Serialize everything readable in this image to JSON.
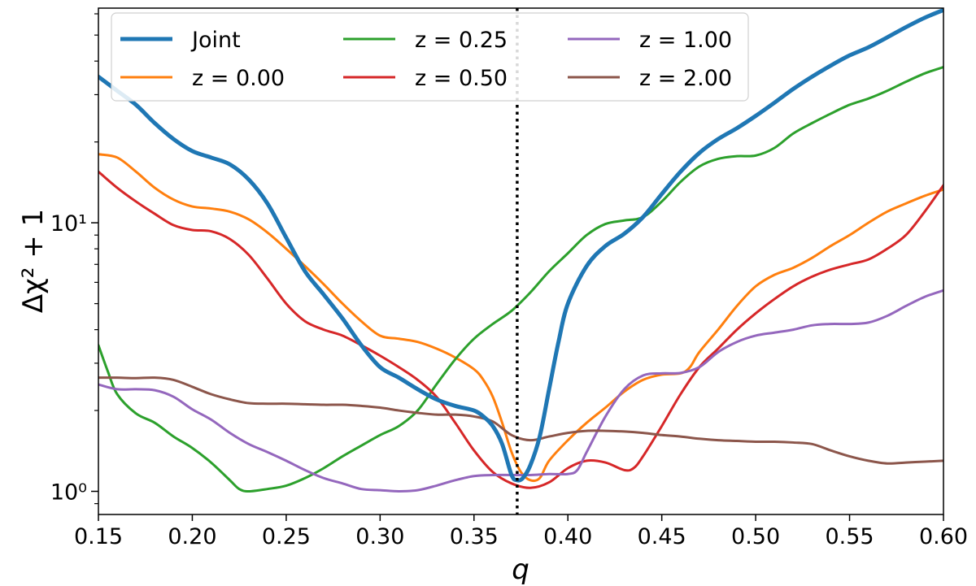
{
  "chart_data": {
    "type": "line",
    "title": "",
    "xlabel": "q",
    "ylabel": "Δχ² + 1",
    "xlim": [
      0.15,
      0.6
    ],
    "ylim": [
      0.82,
      63
    ],
    "yscale": "log",
    "xticks": [
      0.15,
      0.2,
      0.25,
      0.3,
      0.35,
      0.4,
      0.45,
      0.5,
      0.55,
      0.6
    ],
    "xtick_labels": [
      "0.15",
      "0.20",
      "0.25",
      "0.30",
      "0.35",
      "0.40",
      "0.45",
      "0.50",
      "0.55",
      "0.60"
    ],
    "yticks_major": [
      1,
      10
    ],
    "ytick_labels": [
      "10⁰",
      "10¹"
    ],
    "vline": {
      "x": 0.373,
      "style": "dotted",
      "color": "#000000"
    },
    "grid": false,
    "legend": {
      "location": "top-left",
      "columns": 3
    },
    "series": [
      {
        "name": "Joint",
        "color": "#1f77b4",
        "width": 5,
        "points": [
          [
            0.15,
            35
          ],
          [
            0.16,
            31
          ],
          [
            0.17,
            27.5
          ],
          [
            0.18,
            23.5
          ],
          [
            0.19,
            20.5
          ],
          [
            0.2,
            18.5
          ],
          [
            0.21,
            17.5
          ],
          [
            0.22,
            16.5
          ],
          [
            0.23,
            14.5
          ],
          [
            0.24,
            11.8
          ],
          [
            0.25,
            8.8
          ],
          [
            0.26,
            6.6
          ],
          [
            0.27,
            5.4
          ],
          [
            0.28,
            4.4
          ],
          [
            0.29,
            3.5
          ],
          [
            0.3,
            2.9
          ],
          [
            0.31,
            2.65
          ],
          [
            0.32,
            2.4
          ],
          [
            0.33,
            2.2
          ],
          [
            0.34,
            2.08
          ],
          [
            0.35,
            2.0
          ],
          [
            0.355,
            1.9
          ],
          [
            0.36,
            1.75
          ],
          [
            0.365,
            1.5
          ],
          [
            0.37,
            1.15
          ],
          [
            0.373,
            1.1
          ],
          [
            0.376,
            1.12
          ],
          [
            0.38,
            1.25
          ],
          [
            0.385,
            1.6
          ],
          [
            0.39,
            2.4
          ],
          [
            0.395,
            3.6
          ],
          [
            0.4,
            5.0
          ],
          [
            0.41,
            6.9
          ],
          [
            0.42,
            8.2
          ],
          [
            0.43,
            9.1
          ],
          [
            0.44,
            10.5
          ],
          [
            0.45,
            12.8
          ],
          [
            0.46,
            15.5
          ],
          [
            0.47,
            18.2
          ],
          [
            0.48,
            20.5
          ],
          [
            0.49,
            22.5
          ],
          [
            0.5,
            25
          ],
          [
            0.51,
            28
          ],
          [
            0.52,
            31.5
          ],
          [
            0.53,
            35
          ],
          [
            0.54,
            38.5
          ],
          [
            0.55,
            42
          ],
          [
            0.56,
            45
          ],
          [
            0.57,
            49
          ],
          [
            0.58,
            53.5
          ],
          [
            0.59,
            58
          ],
          [
            0.6,
            62
          ]
        ]
      },
      {
        "name": "z = 0.00",
        "color": "#ff7f0e",
        "width": 3,
        "points": [
          [
            0.15,
            18
          ],
          [
            0.16,
            17.5
          ],
          [
            0.17,
            15.5
          ],
          [
            0.18,
            13.5
          ],
          [
            0.19,
            12.2
          ],
          [
            0.2,
            11.5
          ],
          [
            0.21,
            11.3
          ],
          [
            0.22,
            11.0
          ],
          [
            0.23,
            10.3
          ],
          [
            0.24,
            9.2
          ],
          [
            0.25,
            8.0
          ],
          [
            0.26,
            6.9
          ],
          [
            0.27,
            5.9
          ],
          [
            0.28,
            5.0
          ],
          [
            0.29,
            4.3
          ],
          [
            0.3,
            3.8
          ],
          [
            0.31,
            3.7
          ],
          [
            0.32,
            3.6
          ],
          [
            0.33,
            3.4
          ],
          [
            0.34,
            3.15
          ],
          [
            0.35,
            2.85
          ],
          [
            0.355,
            2.6
          ],
          [
            0.36,
            2.25
          ],
          [
            0.365,
            1.8
          ],
          [
            0.37,
            1.4
          ],
          [
            0.375,
            1.18
          ],
          [
            0.38,
            1.1
          ],
          [
            0.385,
            1.12
          ],
          [
            0.39,
            1.3
          ],
          [
            0.4,
            1.55
          ],
          [
            0.41,
            1.8
          ],
          [
            0.42,
            2.05
          ],
          [
            0.43,
            2.35
          ],
          [
            0.44,
            2.6
          ],
          [
            0.45,
            2.72
          ],
          [
            0.46,
            2.75
          ],
          [
            0.465,
            2.9
          ],
          [
            0.47,
            3.3
          ],
          [
            0.48,
            4.0
          ],
          [
            0.49,
            4.9
          ],
          [
            0.5,
            5.8
          ],
          [
            0.51,
            6.4
          ],
          [
            0.52,
            6.8
          ],
          [
            0.53,
            7.4
          ],
          [
            0.54,
            8.2
          ],
          [
            0.55,
            9.0
          ],
          [
            0.56,
            10.0
          ],
          [
            0.57,
            11.0
          ],
          [
            0.58,
            11.8
          ],
          [
            0.59,
            12.6
          ],
          [
            0.6,
            13.3
          ]
        ]
      },
      {
        "name": "z = 0.25",
        "color": "#2ca02c",
        "width": 3,
        "points": [
          [
            0.15,
            3.5
          ],
          [
            0.155,
            2.8
          ],
          [
            0.16,
            2.3
          ],
          [
            0.17,
            1.95
          ],
          [
            0.18,
            1.8
          ],
          [
            0.19,
            1.6
          ],
          [
            0.2,
            1.45
          ],
          [
            0.21,
            1.28
          ],
          [
            0.22,
            1.1
          ],
          [
            0.225,
            1.02
          ],
          [
            0.23,
            1.0
          ],
          [
            0.24,
            1.02
          ],
          [
            0.25,
            1.05
          ],
          [
            0.26,
            1.12
          ],
          [
            0.27,
            1.22
          ],
          [
            0.28,
            1.35
          ],
          [
            0.29,
            1.48
          ],
          [
            0.3,
            1.62
          ],
          [
            0.31,
            1.75
          ],
          [
            0.32,
            2.0
          ],
          [
            0.33,
            2.5
          ],
          [
            0.34,
            3.1
          ],
          [
            0.35,
            3.7
          ],
          [
            0.36,
            4.2
          ],
          [
            0.37,
            4.7
          ],
          [
            0.38,
            5.5
          ],
          [
            0.39,
            6.6
          ],
          [
            0.4,
            7.7
          ],
          [
            0.41,
            9.0
          ],
          [
            0.42,
            9.9
          ],
          [
            0.43,
            10.2
          ],
          [
            0.44,
            10.5
          ],
          [
            0.45,
            12.0
          ],
          [
            0.46,
            14.2
          ],
          [
            0.47,
            16.2
          ],
          [
            0.48,
            17.3
          ],
          [
            0.49,
            17.7
          ],
          [
            0.5,
            17.8
          ],
          [
            0.51,
            19.0
          ],
          [
            0.52,
            21.5
          ],
          [
            0.53,
            23.5
          ],
          [
            0.54,
            25.5
          ],
          [
            0.55,
            27.5
          ],
          [
            0.56,
            29
          ],
          [
            0.57,
            31
          ],
          [
            0.58,
            33.5
          ],
          [
            0.59,
            36
          ],
          [
            0.6,
            38
          ]
        ]
      },
      {
        "name": "z = 0.50",
        "color": "#d62728",
        "width": 3,
        "points": [
          [
            0.15,
            15.5
          ],
          [
            0.16,
            13.5
          ],
          [
            0.17,
            12.0
          ],
          [
            0.18,
            10.8
          ],
          [
            0.19,
            9.8
          ],
          [
            0.2,
            9.4
          ],
          [
            0.21,
            9.3
          ],
          [
            0.22,
            8.7
          ],
          [
            0.23,
            7.6
          ],
          [
            0.24,
            6.2
          ],
          [
            0.25,
            5.0
          ],
          [
            0.26,
            4.3
          ],
          [
            0.27,
            4.0
          ],
          [
            0.28,
            3.8
          ],
          [
            0.29,
            3.5
          ],
          [
            0.3,
            3.2
          ],
          [
            0.31,
            2.9
          ],
          [
            0.32,
            2.6
          ],
          [
            0.33,
            2.25
          ],
          [
            0.34,
            1.8
          ],
          [
            0.35,
            1.42
          ],
          [
            0.36,
            1.18
          ],
          [
            0.37,
            1.07
          ],
          [
            0.38,
            1.03
          ],
          [
            0.39,
            1.08
          ],
          [
            0.4,
            1.22
          ],
          [
            0.41,
            1.3
          ],
          [
            0.42,
            1.28
          ],
          [
            0.43,
            1.2
          ],
          [
            0.435,
            1.22
          ],
          [
            0.44,
            1.35
          ],
          [
            0.45,
            1.75
          ],
          [
            0.46,
            2.3
          ],
          [
            0.47,
            2.9
          ],
          [
            0.48,
            3.4
          ],
          [
            0.49,
            4.0
          ],
          [
            0.5,
            4.6
          ],
          [
            0.51,
            5.2
          ],
          [
            0.52,
            5.8
          ],
          [
            0.53,
            6.3
          ],
          [
            0.54,
            6.7
          ],
          [
            0.55,
            7.0
          ],
          [
            0.56,
            7.3
          ],
          [
            0.57,
            8.0
          ],
          [
            0.58,
            9.0
          ],
          [
            0.59,
            11.0
          ],
          [
            0.6,
            13.8
          ]
        ]
      },
      {
        "name": "z = 1.00",
        "color": "#9467bd",
        "width": 3,
        "points": [
          [
            0.15,
            2.5
          ],
          [
            0.16,
            2.4
          ],
          [
            0.17,
            2.4
          ],
          [
            0.18,
            2.38
          ],
          [
            0.19,
            2.25
          ],
          [
            0.2,
            2.02
          ],
          [
            0.21,
            1.85
          ],
          [
            0.22,
            1.65
          ],
          [
            0.23,
            1.5
          ],
          [
            0.24,
            1.4
          ],
          [
            0.25,
            1.3
          ],
          [
            0.26,
            1.2
          ],
          [
            0.27,
            1.12
          ],
          [
            0.28,
            1.07
          ],
          [
            0.29,
            1.02
          ],
          [
            0.3,
            1.01
          ],
          [
            0.31,
            1.0
          ],
          [
            0.32,
            1.01
          ],
          [
            0.33,
            1.05
          ],
          [
            0.34,
            1.1
          ],
          [
            0.35,
            1.14
          ],
          [
            0.36,
            1.15
          ],
          [
            0.37,
            1.15
          ],
          [
            0.38,
            1.15
          ],
          [
            0.39,
            1.16
          ],
          [
            0.4,
            1.16
          ],
          [
            0.405,
            1.2
          ],
          [
            0.41,
            1.4
          ],
          [
            0.42,
            1.9
          ],
          [
            0.43,
            2.4
          ],
          [
            0.44,
            2.7
          ],
          [
            0.45,
            2.75
          ],
          [
            0.46,
            2.76
          ],
          [
            0.47,
            2.9
          ],
          [
            0.48,
            3.3
          ],
          [
            0.49,
            3.6
          ],
          [
            0.5,
            3.8
          ],
          [
            0.51,
            3.9
          ],
          [
            0.52,
            4.0
          ],
          [
            0.53,
            4.15
          ],
          [
            0.54,
            4.2
          ],
          [
            0.55,
            4.2
          ],
          [
            0.56,
            4.25
          ],
          [
            0.57,
            4.5
          ],
          [
            0.58,
            4.9
          ],
          [
            0.59,
            5.3
          ],
          [
            0.6,
            5.6
          ]
        ]
      },
      {
        "name": "z = 2.00",
        "color": "#8c564b",
        "width": 3,
        "points": [
          [
            0.15,
            2.65
          ],
          [
            0.16,
            2.65
          ],
          [
            0.17,
            2.64
          ],
          [
            0.18,
            2.65
          ],
          [
            0.19,
            2.6
          ],
          [
            0.2,
            2.45
          ],
          [
            0.21,
            2.3
          ],
          [
            0.22,
            2.2
          ],
          [
            0.23,
            2.13
          ],
          [
            0.24,
            2.12
          ],
          [
            0.25,
            2.12
          ],
          [
            0.26,
            2.11
          ],
          [
            0.27,
            2.1
          ],
          [
            0.28,
            2.1
          ],
          [
            0.29,
            2.08
          ],
          [
            0.3,
            2.05
          ],
          [
            0.31,
            2.0
          ],
          [
            0.32,
            1.96
          ],
          [
            0.33,
            1.93
          ],
          [
            0.34,
            1.93
          ],
          [
            0.35,
            1.9
          ],
          [
            0.36,
            1.82
          ],
          [
            0.37,
            1.62
          ],
          [
            0.38,
            1.55
          ],
          [
            0.39,
            1.6
          ],
          [
            0.4,
            1.65
          ],
          [
            0.41,
            1.68
          ],
          [
            0.42,
            1.68
          ],
          [
            0.43,
            1.67
          ],
          [
            0.44,
            1.65
          ],
          [
            0.45,
            1.62
          ],
          [
            0.46,
            1.6
          ],
          [
            0.47,
            1.57
          ],
          [
            0.48,
            1.55
          ],
          [
            0.49,
            1.54
          ],
          [
            0.5,
            1.53
          ],
          [
            0.51,
            1.53
          ],
          [
            0.52,
            1.52
          ],
          [
            0.53,
            1.5
          ],
          [
            0.54,
            1.42
          ],
          [
            0.55,
            1.35
          ],
          [
            0.56,
            1.3
          ],
          [
            0.57,
            1.27
          ],
          [
            0.58,
            1.28
          ],
          [
            0.59,
            1.29
          ],
          [
            0.6,
            1.3
          ]
        ]
      }
    ]
  }
}
